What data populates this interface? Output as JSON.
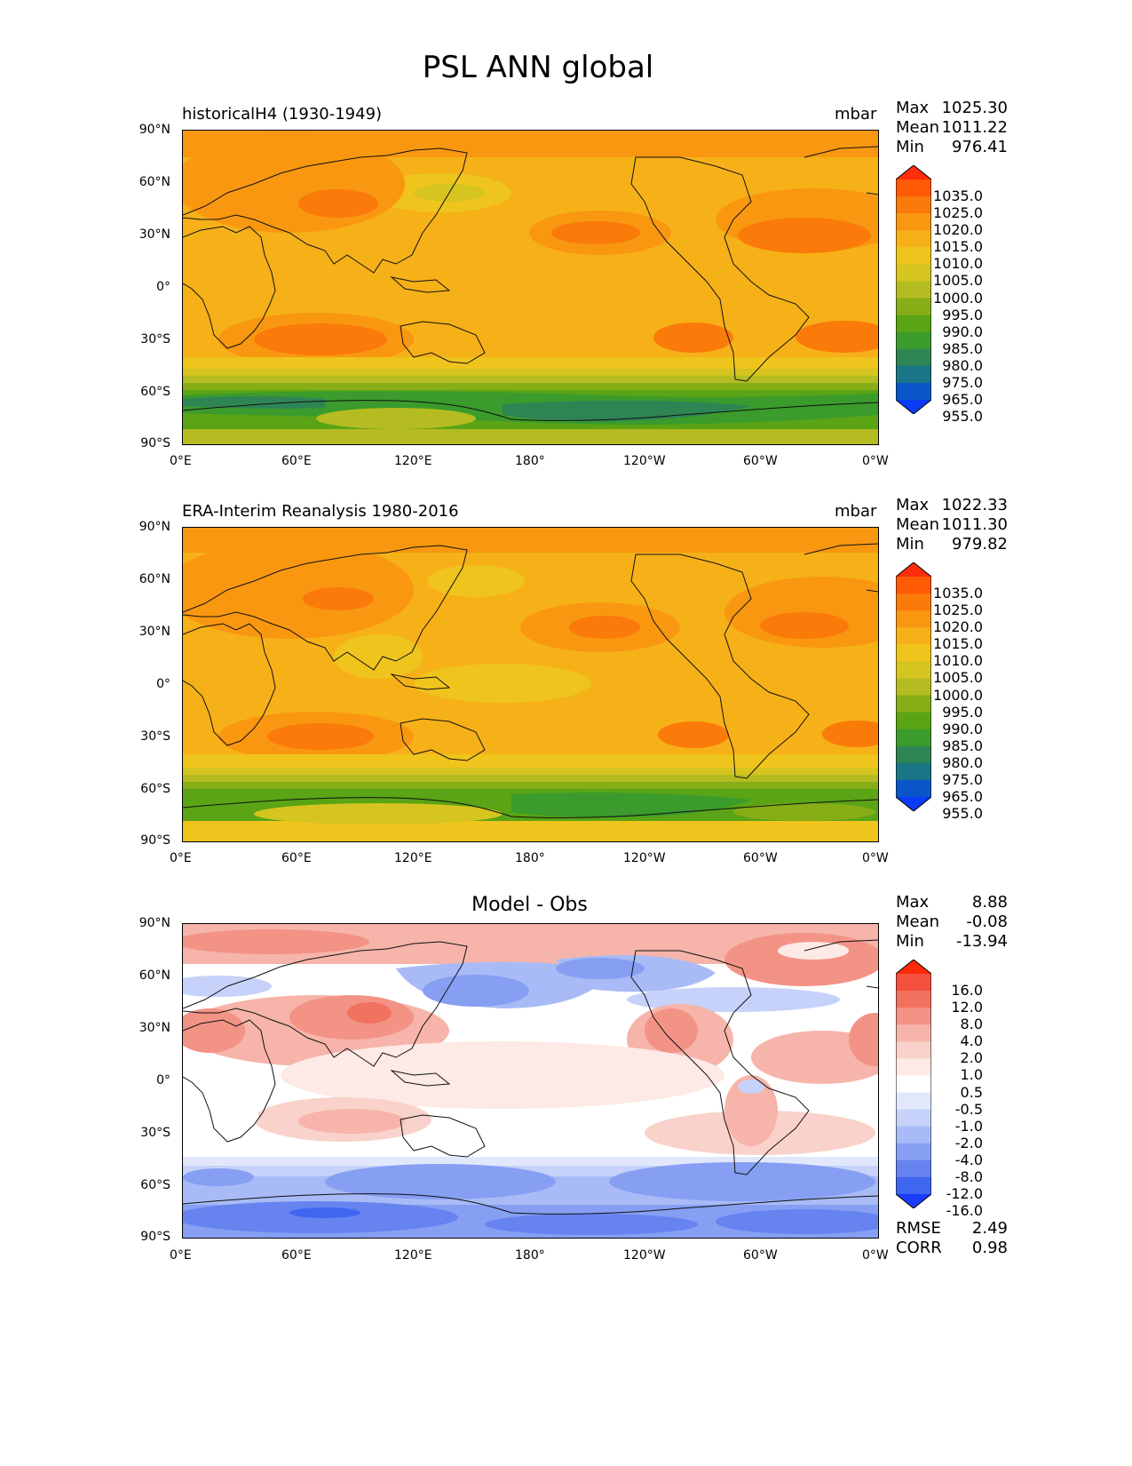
{
  "figure_title": "PSL ANN global",
  "x_ticks": [
    "0°E",
    "60°E",
    "120°E",
    "180°",
    "120°W",
    "60°W",
    "0°W"
  ],
  "y_ticks": [
    "90°N",
    "60°N",
    "30°N",
    "0°",
    "30°S",
    "60°S",
    "90°S"
  ],
  "panels": [
    {
      "left_title": "historicalH4 (1930-1949)",
      "right_title": "mbar",
      "stats": [
        {
          "label": "Max",
          "value": "1025.30"
        },
        {
          "label": "Mean",
          "value": "1011.22"
        },
        {
          "label": "Min",
          "value": "976.41"
        }
      ],
      "colorbar": {
        "labels": [
          "1035.0",
          "1025.0",
          "1020.0",
          "1015.0",
          "1010.0",
          "1005.0",
          "1000.0",
          "995.0",
          "990.0",
          "985.0",
          "980.0",
          "975.0",
          "965.0",
          "955.0"
        ],
        "colors": [
          "#ff2d0b",
          "#ff5a05",
          "#fa7a0a",
          "#f99711",
          "#f6b118",
          "#efc41d",
          "#d6c420",
          "#b5bc22",
          "#87ad17",
          "#5aa415",
          "#3b9b2c",
          "#2f8454",
          "#187686",
          "#0a56c8",
          "#0b3cf5"
        ]
      }
    },
    {
      "left_title": "ERA-Interim Reanalysis 1980-2016",
      "right_title": "mbar",
      "stats": [
        {
          "label": "Max",
          "value": "1022.33"
        },
        {
          "label": "Mean",
          "value": "1011.30"
        },
        {
          "label": "Min",
          "value": "979.82"
        }
      ],
      "colorbar": {
        "labels": [
          "1035.0",
          "1025.0",
          "1020.0",
          "1015.0",
          "1010.0",
          "1005.0",
          "1000.0",
          "995.0",
          "990.0",
          "985.0",
          "980.0",
          "975.0",
          "965.0",
          "955.0"
        ],
        "colors": [
          "#ff2d0b",
          "#ff5a05",
          "#fa7a0a",
          "#f99711",
          "#f6b118",
          "#efc41d",
          "#d6c420",
          "#b5bc22",
          "#87ad17",
          "#5aa415",
          "#3b9b2c",
          "#2f8454",
          "#187686",
          "#0a56c8",
          "#0b3cf5"
        ]
      }
    },
    {
      "center_title": "Model - Obs",
      "stats": [
        {
          "label": "Max",
          "value": "8.88"
        },
        {
          "label": "Mean",
          "value": "-0.08"
        },
        {
          "label": "Min",
          "value": "-13.94"
        }
      ],
      "extra_stats": [
        {
          "label": "RMSE",
          "value": "2.49"
        },
        {
          "label": "CORR",
          "value": "0.98"
        }
      ],
      "colorbar": {
        "labels": [
          "16.0",
          "12.0",
          "8.0",
          "4.0",
          "2.0",
          "1.0",
          "0.5",
          "-0.5",
          "-1.0",
          "-2.0",
          "-4.0",
          "-8.0",
          "-12.0",
          "-16.0"
        ],
        "colors": [
          "#ff2a0a",
          "#f4503e",
          "#f0725f",
          "#f39386",
          "#f6b4aa",
          "#f9d2cb",
          "#fde9e5",
          "#ffffff",
          "#e2e8fb",
          "#c6d2f9",
          "#a8bbf6",
          "#869ff3",
          "#6683f0",
          "#3f66f0",
          "#1a3cfb"
        ]
      }
    }
  ]
}
